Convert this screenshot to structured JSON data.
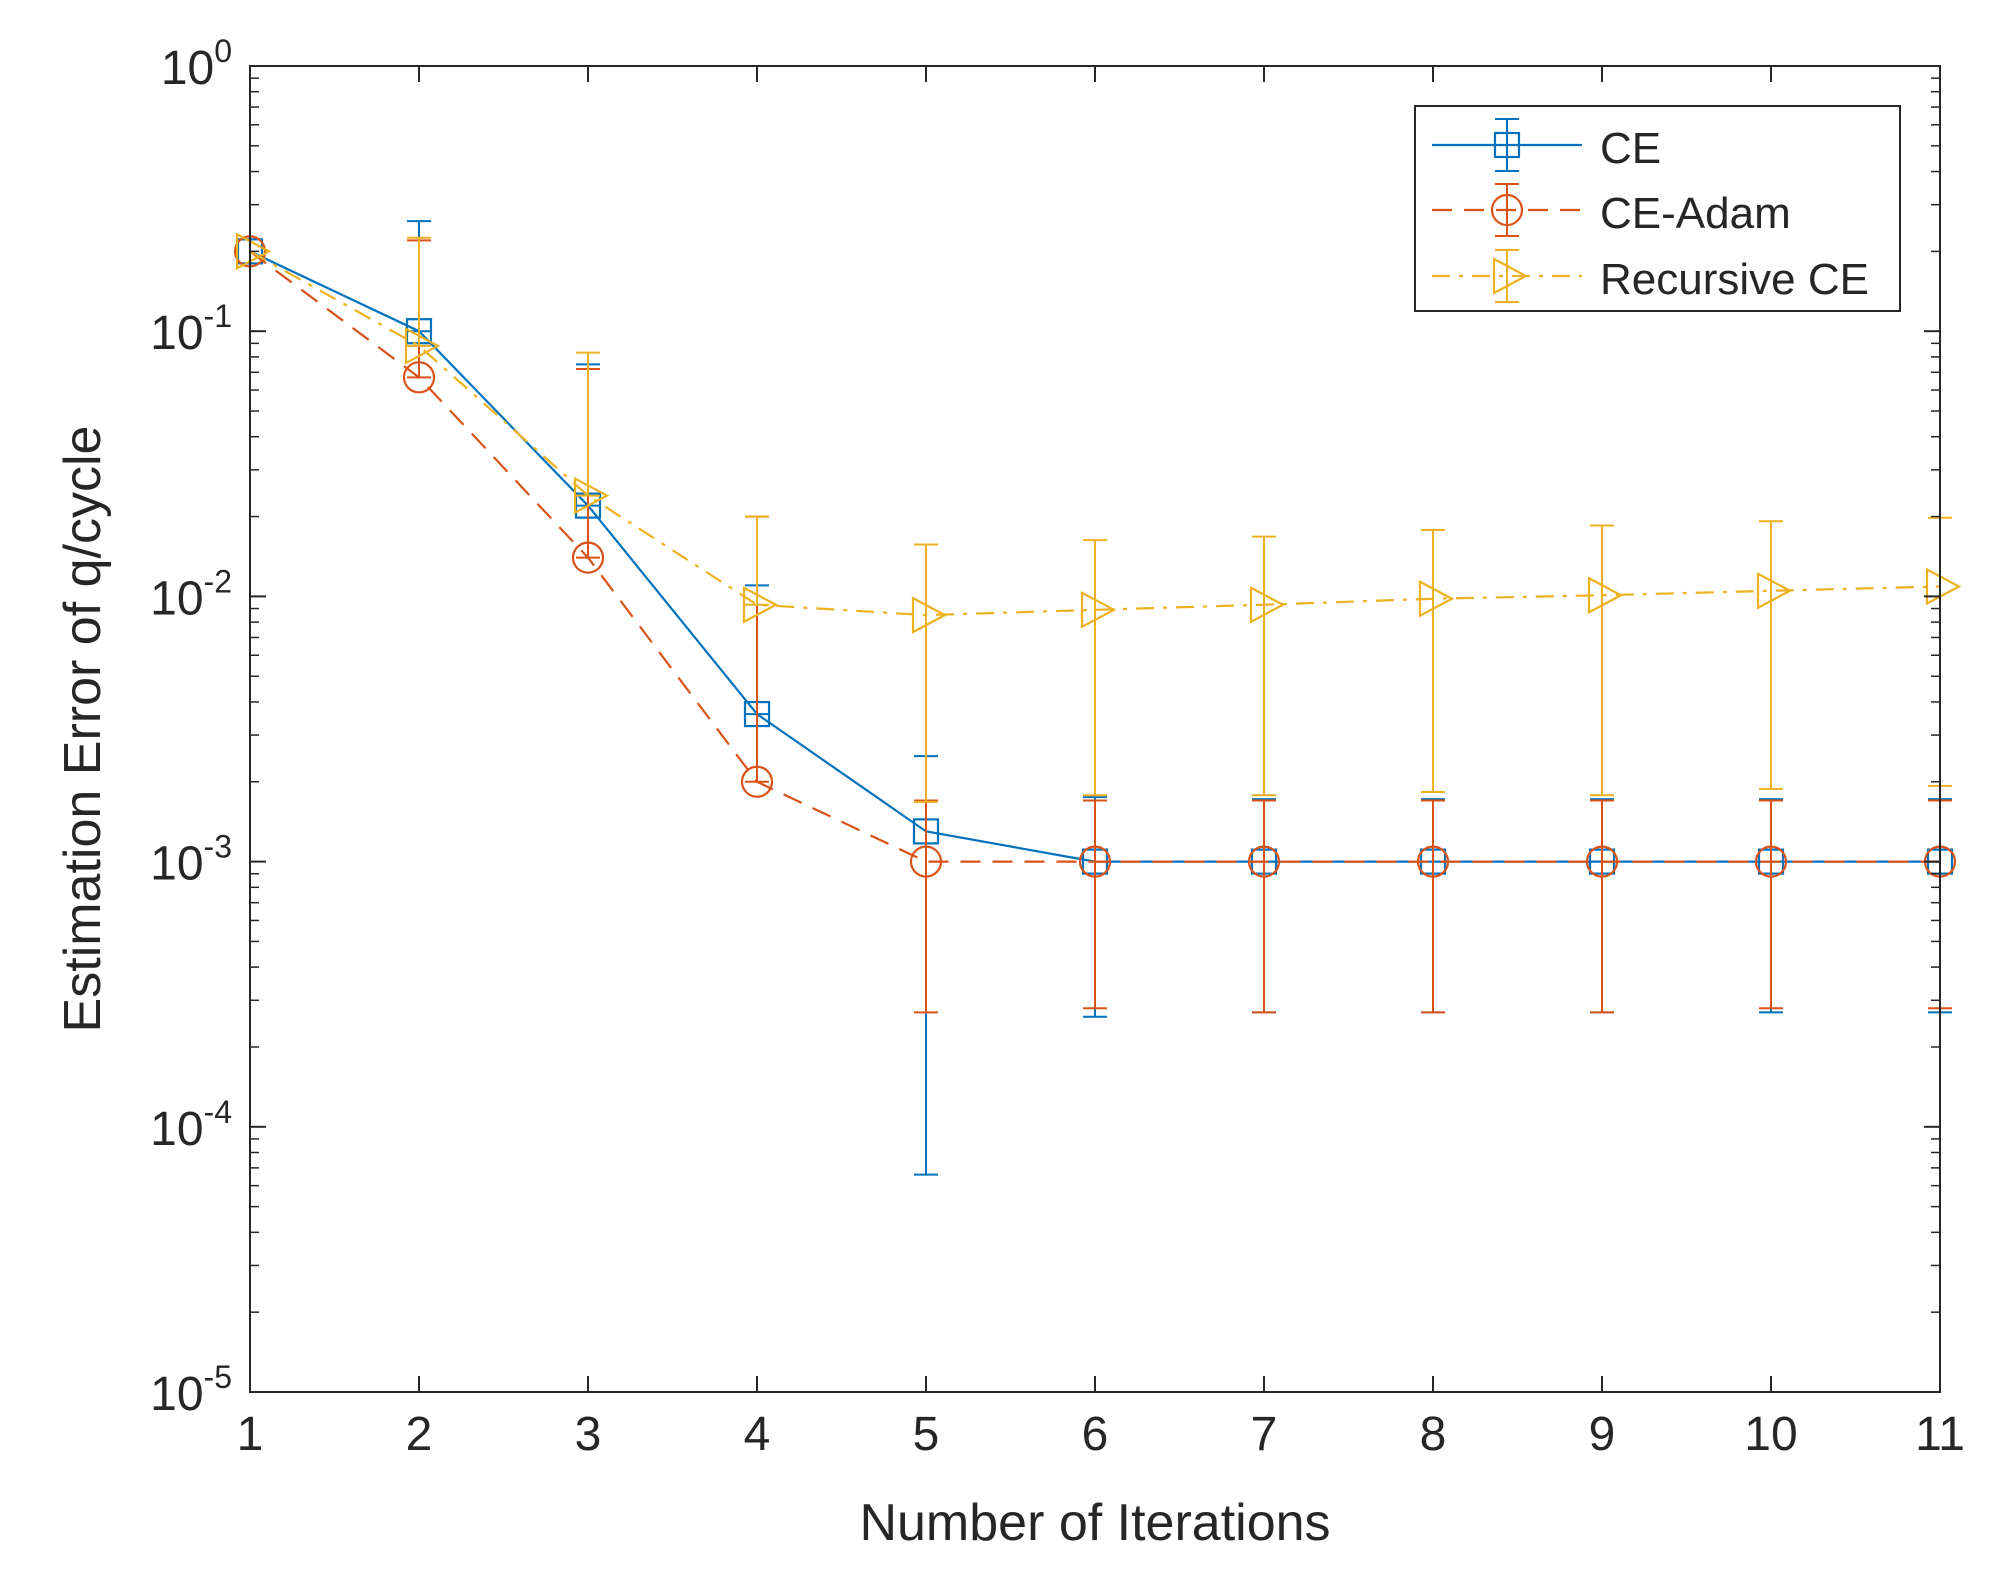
{
  "chart_data": {
    "type": "line",
    "title": "",
    "xlabel": "Number of Iterations",
    "ylabel": "Estimation Error of q/cycle",
    "xlim": [
      1,
      11
    ],
    "ylim": [
      1e-05,
      1
    ],
    "yscale": "log",
    "grid": false,
    "legend_position": "top-right",
    "x": [
      1,
      2,
      3,
      4,
      5,
      6,
      7,
      8,
      9,
      10,
      11
    ],
    "xticks": [
      1,
      2,
      3,
      4,
      5,
      6,
      7,
      8,
      9,
      10,
      11
    ],
    "xtick_labels": [
      "1",
      "2",
      "3",
      "4",
      "5",
      "6",
      "7",
      "8",
      "9",
      "10",
      "11"
    ],
    "yticks": [
      {
        "value": 1,
        "base": "10",
        "exp": "0"
      },
      {
        "value": 0.1,
        "base": "10",
        "exp": "-1"
      },
      {
        "value": 0.01,
        "base": "10",
        "exp": "-2"
      },
      {
        "value": 0.001,
        "base": "10",
        "exp": "-3"
      },
      {
        "value": 0.0001,
        "base": "10",
        "exp": "-4"
      },
      {
        "value": 1e-05,
        "base": "10",
        "exp": "-5"
      }
    ],
    "series": [
      {
        "name": "CE",
        "color": "#0072BD",
        "marker": "square",
        "linestyle": "solid",
        "values": [
          0.2,
          0.1,
          0.022,
          0.0036,
          0.0013,
          0.001,
          0.001,
          0.001,
          0.001,
          0.001,
          0.001
        ],
        "err_low": [
          0.2,
          0.1,
          0.022,
          0.0036,
          6.6e-05,
          0.00026,
          0.00027,
          0.00027,
          0.00027,
          0.00027,
          0.00027
        ],
        "err_high": [
          0.2,
          0.26,
          0.075,
          0.011,
          0.0025,
          0.00175,
          0.00172,
          0.00172,
          0.00172,
          0.00172,
          0.00172
        ]
      },
      {
        "name": "CE-Adam",
        "color": "#D95319",
        "marker": "circle",
        "linestyle": "dashed",
        "values": [
          0.2,
          0.067,
          0.014,
          0.002,
          0.001,
          0.001,
          0.001,
          0.001,
          0.001,
          0.001,
          0.001
        ],
        "err_low": [
          0.2,
          0.067,
          0.014,
          0.002,
          0.00027,
          0.00028,
          0.00027,
          0.00027,
          0.00027,
          0.00028,
          0.00028
        ],
        "err_high": [
          0.2,
          0.22,
          0.072,
          0.02,
          0.0017,
          0.0017,
          0.0017,
          0.0017,
          0.0017,
          0.0017,
          0.0017
        ]
      },
      {
        "name": "Recursive CE",
        "color": "#EDB120",
        "marker": "triangle-right",
        "linestyle": "dashdot",
        "values": [
          0.2,
          0.088,
          0.024,
          0.0093,
          0.0085,
          0.0089,
          0.0093,
          0.0098,
          0.0101,
          0.0105,
          0.0109
        ],
        "err_low": [
          0.2,
          0.088,
          0.024,
          0.0093,
          0.00168,
          0.00178,
          0.00178,
          0.00183,
          0.00178,
          0.00188,
          0.00193
        ],
        "err_high": [
          0.2,
          0.225,
          0.083,
          0.02,
          0.0157,
          0.0163,
          0.0168,
          0.0178,
          0.0185,
          0.0192,
          0.0198
        ]
      }
    ]
  }
}
